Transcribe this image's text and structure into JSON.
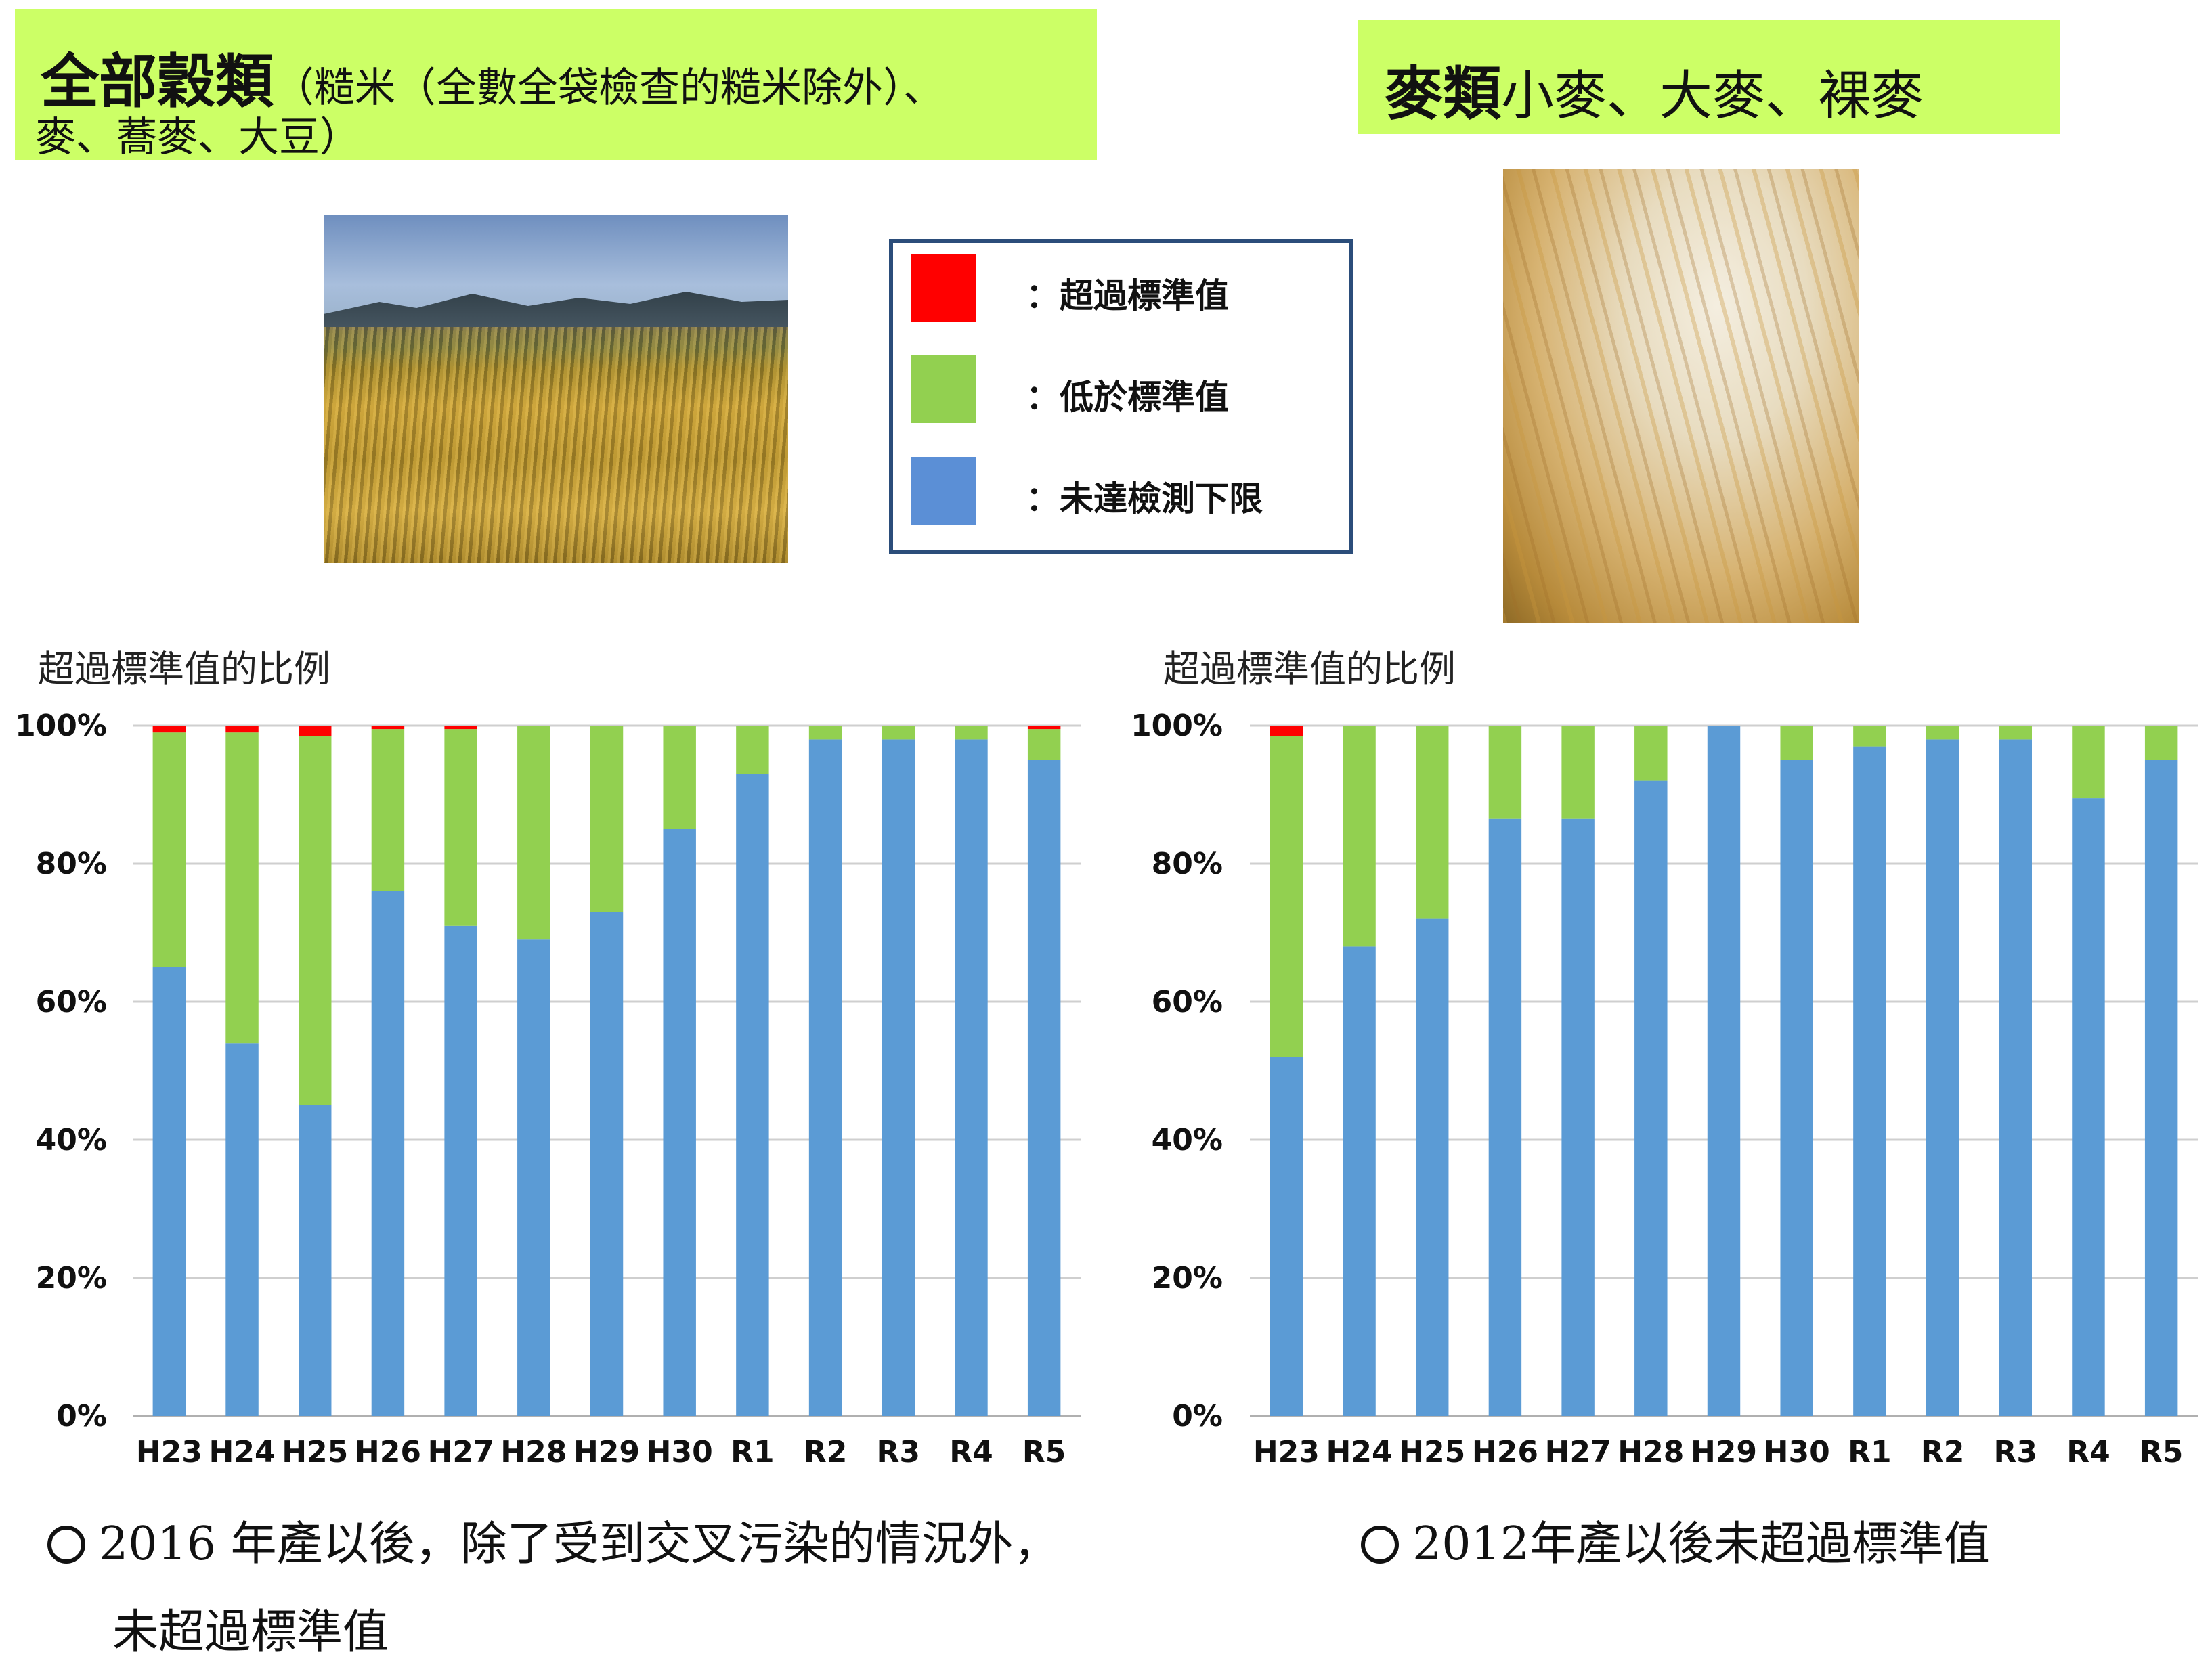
{
  "titles": {
    "left_main": "全部穀類",
    "left_sub1": "（糙米（全數全袋檢查的糙米除外）、",
    "left_sub2": "麥、蕎麥、大豆）",
    "right_main": "麥類",
    "right_sub": "小麥、大麥、裸麥"
  },
  "legend": [
    {
      "label": "：超過標準值",
      "color": "#ff0000"
    },
    {
      "label": "：低於標準值",
      "color": "#92d050"
    },
    {
      "label": "：未達檢測下限",
      "color": "#5b8fd6"
    }
  ],
  "colors": {
    "exceed": "#ff0000",
    "below": "#92d050",
    "nd": "#5b9bd5",
    "grid": "#cfcfcf"
  },
  "notes": {
    "left_line1": "2016 年產以後，除了受到交叉污染的情況外，",
    "left_line2": "未超過標準值",
    "right": "2012年產以後未超過標準值"
  },
  "chart_data": [
    {
      "type": "bar",
      "stacked": true,
      "ylabel": "超過標準值的比例",
      "ylim": [
        0,
        100
      ],
      "yticks": [
        "0%",
        "20%",
        "40%",
        "60%",
        "80%",
        "100%"
      ],
      "categories": [
        "H23",
        "H24",
        "H25",
        "H26",
        "H27",
        "H28",
        "H29",
        "H30",
        "R1",
        "R2",
        "R3",
        "R4",
        "R5"
      ],
      "series": [
        {
          "key": "nd",
          "values": [
            65,
            54,
            45,
            76,
            71,
            69,
            73,
            85,
            93,
            98,
            98,
            98,
            95
          ]
        },
        {
          "key": "below",
          "values": [
            34,
            45,
            53.5,
            23.5,
            28.5,
            31,
            27,
            15,
            7,
            2,
            2,
            2,
            4.5
          ]
        },
        {
          "key": "exceed",
          "values": [
            1,
            1,
            1.5,
            0.5,
            0.5,
            0,
            0,
            0,
            0,
            0,
            0,
            0,
            0.5
          ]
        }
      ]
    },
    {
      "type": "bar",
      "stacked": true,
      "ylabel": "超過標準值的比例",
      "ylim": [
        0,
        100
      ],
      "yticks": [
        "0%",
        "20%",
        "40%",
        "60%",
        "80%",
        "100%"
      ],
      "categories": [
        "H23",
        "H24",
        "H25",
        "H26",
        "H27",
        "H28",
        "H29",
        "H30",
        "R1",
        "R2",
        "R3",
        "R4",
        "R5"
      ],
      "series": [
        {
          "key": "nd",
          "values": [
            52,
            68,
            72,
            86.5,
            86.5,
            92,
            100,
            95,
            97,
            98,
            98,
            89.5,
            95
          ]
        },
        {
          "key": "below",
          "values": [
            46.5,
            32,
            28,
            13.5,
            13.5,
            8,
            0,
            5,
            3,
            2,
            2,
            10.5,
            5
          ]
        },
        {
          "key": "exceed",
          "values": [
            1.5,
            0,
            0,
            0,
            0,
            0,
            0,
            0,
            0,
            0,
            0,
            0,
            0
          ]
        }
      ]
    }
  ]
}
